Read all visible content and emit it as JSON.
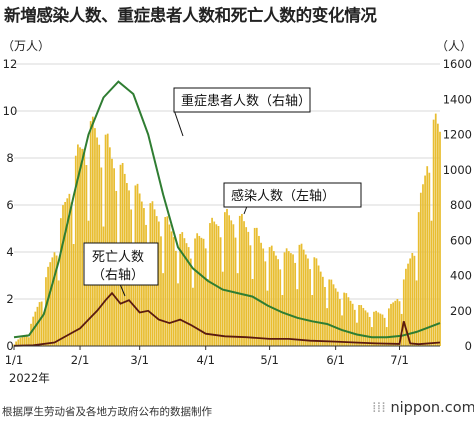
{
  "title": "新増感染人数、重症患者人数和死亡人数的变化情况",
  "source_note": "根据厚生劳动省及各地方政府公布的数据制作",
  "brand": "nippon.com",
  "colors": {
    "bars": "#e8bd30",
    "severe_line": "#2f7d32",
    "deaths_line": "#5a1a10",
    "grid": "#cccccc"
  },
  "chart_data": {
    "type": "bar+line",
    "title": "新増感染人数、重症患者人数和死亡人数的变化情况",
    "left_axis": {
      "unit": "（万人）",
      "range": [
        0,
        12
      ],
      "ticks": [
        "0",
        "2",
        "4",
        "6",
        "8",
        "10",
        "12"
      ]
    },
    "right_axis": {
      "unit": "（人）",
      "range": [
        0,
        1600
      ],
      "ticks": [
        "0",
        "200",
        "400",
        "600",
        "800",
        "1000",
        "1200",
        "1400",
        "1600"
      ]
    },
    "x_axis": {
      "ticks": [
        "1/1",
        "2/1",
        "3/1",
        "4/1",
        "5/1",
        "6/1",
        "7/1"
      ],
      "year_label": "2022年",
      "date_range": [
        "2022-01-01",
        "2022-07-20"
      ]
    },
    "annotations": {
      "severe": "重症患者人数（右轴）",
      "infections": "感染人数（左轴）",
      "deaths_line1": "死亡人数",
      "deaths_line2": "（右轴）"
    },
    "series": [
      {
        "name": "感染人数（左轴）",
        "type": "bar",
        "axis": "left",
        "unit": "万人",
        "note": "daily new infections, approximate weekly averages read from chart",
        "weekly_dates": [
          "2022-01-01",
          "2022-01-08",
          "2022-01-15",
          "2022-01-22",
          "2022-01-29",
          "2022-02-05",
          "2022-02-12",
          "2022-02-19",
          "2022-02-26",
          "2022-03-05",
          "2022-03-12",
          "2022-03-19",
          "2022-03-26",
          "2022-04-02",
          "2022-04-09",
          "2022-04-16",
          "2022-04-23",
          "2022-04-30",
          "2022-05-07",
          "2022-05-14",
          "2022-05-21",
          "2022-05-28",
          "2022-06-04",
          "2022-06-11",
          "2022-06-18",
          "2022-06-25",
          "2022-07-02",
          "2022-07-09",
          "2022-07-16"
        ],
        "weekly_values": [
          0.1,
          0.6,
          2.3,
          4.5,
          7.0,
          8.6,
          8.2,
          7.0,
          6.2,
          5.5,
          5.0,
          4.3,
          4.0,
          4.6,
          5.1,
          5.0,
          4.6,
          3.8,
          3.5,
          3.9,
          3.5,
          2.6,
          2.1,
          1.6,
          1.3,
          1.3,
          2.2,
          4.5,
          8.6
        ]
      },
      {
        "name": "重症患者人数（右轴）",
        "type": "line",
        "axis": "right",
        "unit": "人",
        "x": [
          "2022-01-01",
          "2022-01-08",
          "2022-01-15",
          "2022-01-22",
          "2022-01-29",
          "2022-02-05",
          "2022-02-12",
          "2022-02-19",
          "2022-02-26",
          "2022-03-05",
          "2022-03-12",
          "2022-03-19",
          "2022-03-26",
          "2022-04-02",
          "2022-04-09",
          "2022-04-16",
          "2022-04-23",
          "2022-04-30",
          "2022-05-07",
          "2022-05-14",
          "2022-05-21",
          "2022-05-28",
          "2022-06-04",
          "2022-06-11",
          "2022-06-18",
          "2022-06-25",
          "2022-07-02",
          "2022-07-09",
          "2022-07-20"
        ],
        "y": [
          50,
          60,
          180,
          480,
          850,
          1200,
          1410,
          1500,
          1430,
          1200,
          860,
          560,
          440,
          370,
          320,
          300,
          280,
          230,
          190,
          160,
          140,
          125,
          90,
          65,
          50,
          50,
          58,
          80,
          130
        ]
      },
      {
        "name": "死亡人数（右轴）",
        "type": "line",
        "axis": "right",
        "unit": "人",
        "x": [
          "2022-01-01",
          "2022-01-10",
          "2022-01-20",
          "2022-01-26",
          "2022-02-01",
          "2022-02-05",
          "2022-02-09",
          "2022-02-13",
          "2022-02-16",
          "2022-02-20",
          "2022-02-24",
          "2022-03-01",
          "2022-03-05",
          "2022-03-10",
          "2022-03-15",
          "2022-03-20",
          "2022-03-25",
          "2022-04-01",
          "2022-04-10",
          "2022-04-20",
          "2022-05-01",
          "2022-05-10",
          "2022-05-20",
          "2022-06-01",
          "2022-06-10",
          "2022-06-20",
          "2022-07-01",
          "2022-07-03",
          "2022-07-06",
          "2022-07-10",
          "2022-07-20"
        ],
        "y": [
          1,
          4,
          20,
          60,
          100,
          150,
          200,
          260,
          300,
          240,
          260,
          190,
          200,
          150,
          130,
          150,
          120,
          70,
          55,
          50,
          40,
          40,
          30,
          25,
          20,
          15,
          12,
          140,
          15,
          10,
          20
        ]
      }
    ],
    "grid": true
  }
}
